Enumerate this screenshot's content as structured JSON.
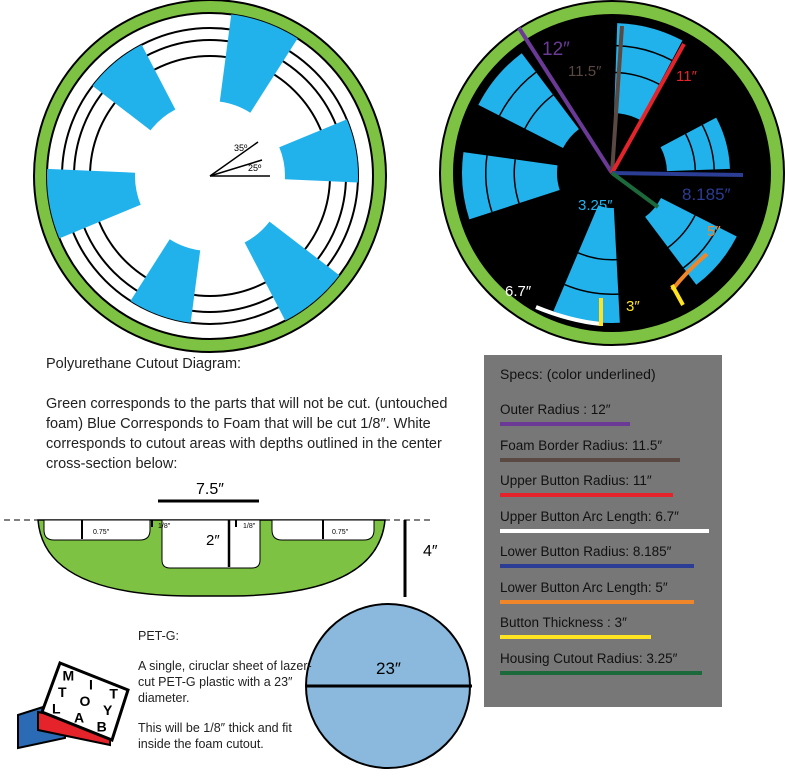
{
  "left_diagram": {
    "angle_a": "35º",
    "angle_b": "25º",
    "colors": {
      "green": "#7dc242",
      "blue": "#21b2ec",
      "black": "#000000",
      "white": "#ffffff"
    }
  },
  "right_diagram": {
    "labels": {
      "outer": "12″",
      "border": "11.5″",
      "upper_radius": "11″",
      "lower_radius": "8.185″",
      "housing": "3.25″",
      "lower_arc": "5″",
      "upper_arc": "6.7″",
      "thickness": "3″"
    }
  },
  "caption": {
    "title": "Polyurethane Cutout Diagram:",
    "body": "Green corresponds to the parts that will not be cut. (untouched foam) Blue Corresponds to Foam that will be cut 1/8″. White corresponds to cutout areas with depths outlined in the center cross-section below:"
  },
  "cross_section": {
    "width": "7.5″",
    "depth_left": "0.75″",
    "eighth_left": "1/8″",
    "eighth_right": "1/8″",
    "depth_right": "0.75″",
    "center_depth": "2″",
    "height": "4″"
  },
  "pet_g": {
    "title": "PET-G:",
    "description": "A single, ciruclar sheet of lazer-cut PET-G plastic with a 23″ diameter.",
    "thickness_note": "This will be 1/8″ thick and fit inside the foam cutout.",
    "diameter_label": "23″",
    "color": "#8ab9dd"
  },
  "logo": {
    "letters": [
      "M",
      "I",
      "T",
      "T",
      "O",
      "Y",
      "L",
      "A",
      "B"
    ]
  },
  "specs": {
    "title": "Specs: (color underlined)",
    "items": [
      {
        "label": "Outer Radius : 12″",
        "color": "#6a3a96"
      },
      {
        "label": "Foam Border Radius: 11.5″",
        "color": "#5a4842"
      },
      {
        "label": "Upper Button Radius: 11″",
        "color": "#e4232b"
      },
      {
        "label": "Upper Button Arc Length: 6.7″",
        "color": "#ffffff"
      },
      {
        "label": "Lower Button Radius: 8.185″",
        "color": "#2b3d94"
      },
      {
        "label": "Lower Button Arc Length: 5″",
        "color": "#f0862a"
      },
      {
        "label": "Button Thickness : 3″",
        "color": "#ffe421"
      },
      {
        "label": "Housing Cutout Radius: 3.25″",
        "color": "#1c6a3b"
      }
    ]
  }
}
